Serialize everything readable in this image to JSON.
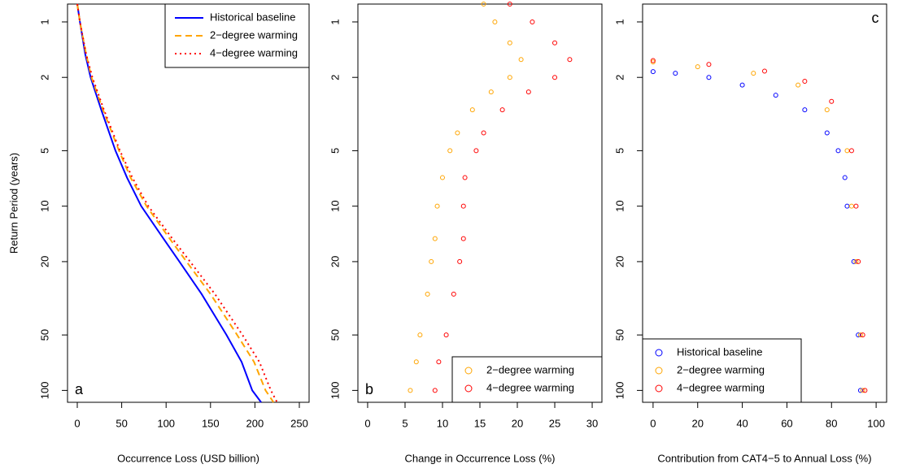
{
  "chart_data": [
    {
      "type": "line",
      "annotation": "a",
      "annotation_corner": "bottom-left",
      "legend": "top-right",
      "xlabel": "Occurrence Loss (USD billion)",
      "ylabel": "Return Period (years)",
      "xlim": [
        -11,
        261
      ],
      "xticks": [
        0,
        50,
        100,
        150,
        200,
        250
      ],
      "ylim": [
        0.8,
        116
      ],
      "yticks": [
        1,
        2,
        5,
        10,
        20,
        50,
        100
      ],
      "log_y": true,
      "y_inverted": true,
      "series": [
        {
          "name": "Historical baseline",
          "color": "#0000ff",
          "dash": "solid",
          "x": [
            0,
            3,
            9,
            15,
            27,
            43,
            56,
            72,
            97,
            115,
            140,
            168,
            185,
            197,
            207
          ],
          "y": [
            0.8,
            1,
            1.5,
            2,
            3,
            5,
            7,
            10,
            15,
            20,
            30,
            50,
            70,
            100,
            116
          ]
        },
        {
          "name": "2−degree warming",
          "color": "#ffa500",
          "dash": "dashed",
          "x": [
            0,
            3,
            10,
            16,
            29,
            47,
            60,
            78,
            104,
            123,
            150,
            180,
            199,
            212,
            221
          ],
          "y": [
            0.8,
            1,
            1.5,
            2,
            3,
            5,
            7,
            10,
            15,
            20,
            30,
            50,
            70,
            100,
            116
          ]
        },
        {
          "name": "4−degree warming",
          "color": "#ff0000",
          "dash": "dotted",
          "x": [
            0,
            3,
            10,
            17,
            30,
            48,
            62,
            80,
            107,
            127,
            155,
            186,
            205,
            218,
            225
          ],
          "y": [
            0.8,
            1,
            1.5,
            2,
            3,
            5,
            7,
            10,
            15,
            20,
            30,
            50,
            70,
            100,
            116
          ]
        }
      ]
    },
    {
      "type": "scatter",
      "annotation": "b",
      "annotation_corner": "bottom-left",
      "legend": "bottom-right",
      "xlabel": "Change in Occurrence Loss (%)",
      "xlim": [
        -1.3,
        31.3
      ],
      "xticks": [
        0,
        5,
        10,
        15,
        20,
        25,
        30
      ],
      "ylim": [
        0.8,
        116
      ],
      "yticks": [
        1,
        2,
        5,
        10,
        20,
        50,
        100
      ],
      "log_y": true,
      "y_inverted": true,
      "series": [
        {
          "name": "2−degree warming",
          "color": "#ffa500",
          "x": [
            15.5,
            17,
            19,
            20.5,
            19,
            16.5,
            14,
            12,
            11,
            10,
            9.3,
            9,
            8.5,
            8,
            7,
            6.5,
            5.7
          ],
          "y": [
            0.8,
            1,
            1.3,
            1.6,
            2,
            2.4,
            3,
            4,
            5,
            7,
            10,
            15,
            20,
            30,
            50,
            70,
            100
          ]
        },
        {
          "name": "4−degree warming",
          "color": "#ff0000",
          "x": [
            19,
            22,
            25,
            27,
            25,
            21.5,
            18,
            15.5,
            14.5,
            13,
            12.8,
            12.8,
            12.3,
            11.5,
            10.5,
            9.5,
            9
          ],
          "y": [
            0.8,
            1,
            1.3,
            1.6,
            2,
            2.4,
            3,
            4,
            5,
            7,
            10,
            15,
            20,
            30,
            50,
            70,
            100
          ]
        }
      ]
    },
    {
      "type": "scatter",
      "annotation": "c",
      "annotation_corner": "top-right",
      "legend": "bottom-left",
      "xlabel": "Contribution from CAT4−5 to Annual Loss (%)",
      "xlim": [
        -4.7,
        104.7
      ],
      "xticks": [
        0,
        20,
        40,
        60,
        80,
        100
      ],
      "ylim": [
        0.8,
        116
      ],
      "yticks": [
        1,
        2,
        5,
        10,
        20,
        50,
        100
      ],
      "log_y": true,
      "y_inverted": true,
      "series": [
        {
          "name": "Historical baseline",
          "color": "#0000ff",
          "x": [
            0,
            10,
            25,
            40,
            55,
            68,
            78,
            83,
            86,
            87,
            90,
            92,
            93
          ],
          "y": [
            1.86,
            1.9,
            2,
            2.2,
            2.5,
            3,
            4,
            5,
            7,
            10,
            20,
            50,
            100
          ]
        },
        {
          "name": "2−degree warming",
          "color": "#ffa500",
          "x": [
            0,
            20,
            45,
            65,
            78,
            87,
            89,
            91,
            93,
            94
          ],
          "y": [
            1.65,
            1.75,
            1.9,
            2.2,
            3,
            5,
            10,
            20,
            50,
            100
          ]
        },
        {
          "name": "4−degree warming",
          "color": "#ff0000",
          "x": [
            0,
            25,
            50,
            68,
            80,
            89,
            91,
            92,
            94,
            95
          ],
          "y": [
            1.62,
            1.7,
            1.85,
            2.1,
            2.7,
            5,
            10,
            20,
            50,
            100
          ]
        }
      ]
    }
  ]
}
